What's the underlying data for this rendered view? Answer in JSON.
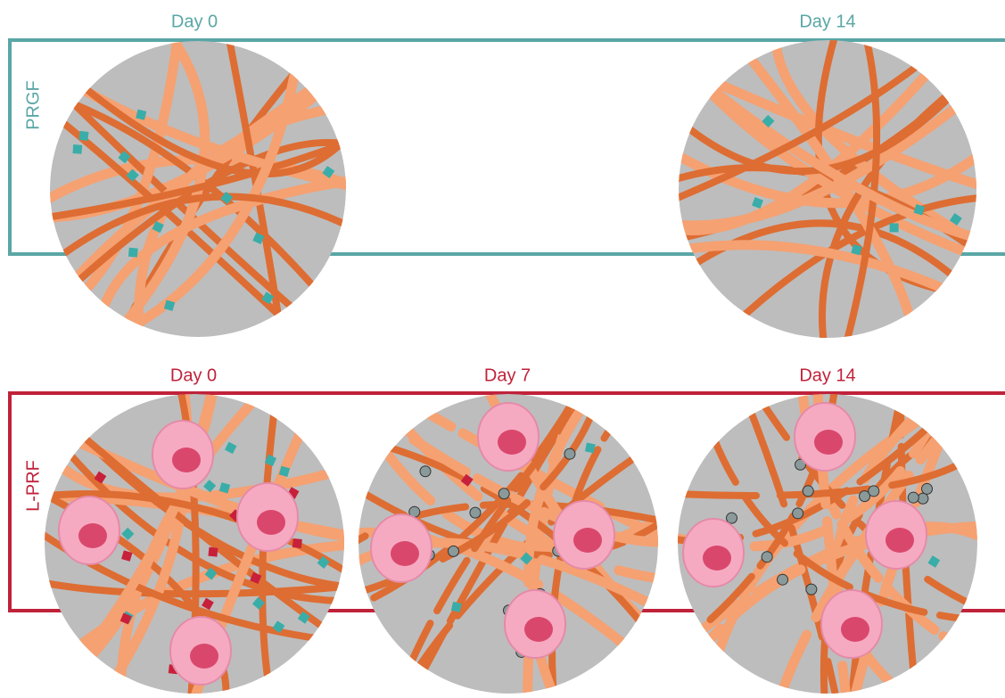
{
  "prgf": {
    "label": "PRGF",
    "panels": [
      {
        "title": "Day 0"
      },
      {
        "title": "Day 14"
      }
    ]
  },
  "lprf": {
    "label": "L-PRF",
    "panels": [
      {
        "title": "Day 0"
      },
      {
        "title": "Day 7"
      },
      {
        "title": "Day 14"
      }
    ]
  }
}
